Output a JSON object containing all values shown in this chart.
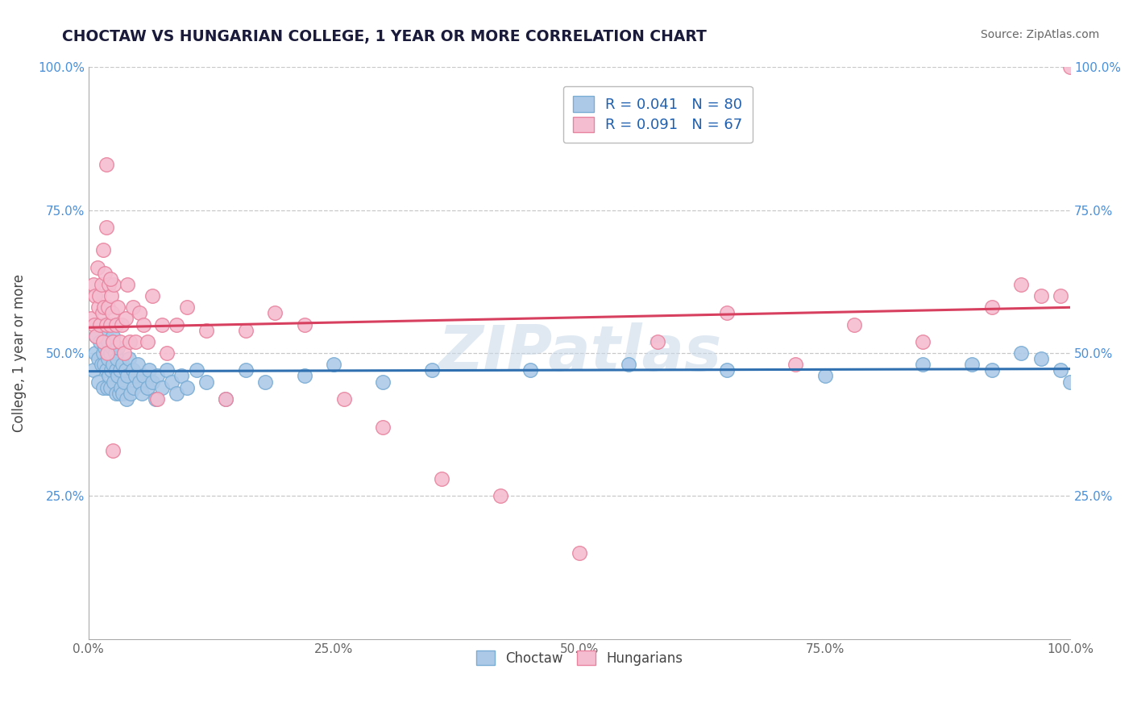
{
  "title": "CHOCTAW VS HUNGARIAN COLLEGE, 1 YEAR OR MORE CORRELATION CHART",
  "source": "Source: ZipAtlas.com",
  "ylabel": "College, 1 year or more",
  "xlim": [
    0,
    1.0
  ],
  "ylim": [
    0,
    1.0
  ],
  "xticks": [
    0.0,
    0.25,
    0.5,
    0.75,
    1.0
  ],
  "yticks": [
    0.0,
    0.25,
    0.5,
    0.75,
    1.0
  ],
  "xtick_labels": [
    "0.0%",
    "25.0%",
    "50.0%",
    "75.0%",
    "100.0%"
  ],
  "ytick_labels_left": [
    "",
    "25.0%",
    "50.0%",
    "75.0%",
    "100.0%"
  ],
  "ytick_labels_right": [
    "",
    "25.0%",
    "50.0%",
    "75.0%",
    "100.0%"
  ],
  "choctaw_color": "#adc9e8",
  "hungarian_color": "#f5bdd0",
  "choctaw_edge": "#7aadd4",
  "hungarian_edge": "#e8849f",
  "trend_blue": "#3070b0",
  "trend_pink": "#d84060",
  "R_choctaw": 0.041,
  "N_choctaw": 80,
  "R_hungarian": 0.091,
  "N_hungarian": 67,
  "watermark": "ZIPatlas",
  "background_color": "#ffffff",
  "grid_color": "#c8c8c8",
  "title_color": "#1a1a3a",
  "source_color": "#666666",
  "ylabel_color": "#444444",
  "tick_color_x": "#666666",
  "tick_color_y": "#4a90d9",
  "legend_text_color": "#2060b0",
  "legend_n_color": "#e04060",
  "choctaw_x": [
    0.005,
    0.007,
    0.008,
    0.01,
    0.01,
    0.012,
    0.013,
    0.015,
    0.015,
    0.015,
    0.016,
    0.017,
    0.018,
    0.018,
    0.019,
    0.02,
    0.02,
    0.021,
    0.022,
    0.022,
    0.023,
    0.024,
    0.025,
    0.025,
    0.026,
    0.027,
    0.028,
    0.028,
    0.029,
    0.03,
    0.03,
    0.031,
    0.032,
    0.033,
    0.035,
    0.035,
    0.036,
    0.038,
    0.039,
    0.04,
    0.041,
    0.043,
    0.045,
    0.046,
    0.048,
    0.05,
    0.052,
    0.054,
    0.056,
    0.06,
    0.062,
    0.065,
    0.068,
    0.07,
    0.075,
    0.08,
    0.085,
    0.09,
    0.095,
    0.1,
    0.11,
    0.12,
    0.14,
    0.16,
    0.18,
    0.22,
    0.25,
    0.3,
    0.35,
    0.45,
    0.55,
    0.65,
    0.75,
    0.85,
    0.9,
    0.92,
    0.95,
    0.97,
    0.99,
    1.0
  ],
  "choctaw_y": [
    0.47,
    0.5,
    0.53,
    0.49,
    0.45,
    0.52,
    0.48,
    0.55,
    0.5,
    0.44,
    0.48,
    0.51,
    0.54,
    0.47,
    0.44,
    0.49,
    0.52,
    0.46,
    0.5,
    0.44,
    0.47,
    0.51,
    0.48,
    0.53,
    0.45,
    0.5,
    0.47,
    0.43,
    0.49,
    0.51,
    0.46,
    0.43,
    0.47,
    0.44,
    0.48,
    0.43,
    0.45,
    0.47,
    0.42,
    0.46,
    0.49,
    0.43,
    0.47,
    0.44,
    0.46,
    0.48,
    0.45,
    0.43,
    0.46,
    0.44,
    0.47,
    0.45,
    0.42,
    0.46,
    0.44,
    0.47,
    0.45,
    0.43,
    0.46,
    0.44,
    0.47,
    0.45,
    0.42,
    0.47,
    0.45,
    0.46,
    0.48,
    0.45,
    0.47,
    0.47,
    0.48,
    0.47,
    0.46,
    0.48,
    0.48,
    0.47,
    0.5,
    0.49,
    0.47,
    0.45
  ],
  "hungarian_x": [
    0.003,
    0.005,
    0.006,
    0.007,
    0.008,
    0.009,
    0.01,
    0.011,
    0.012,
    0.013,
    0.014,
    0.015,
    0.015,
    0.016,
    0.017,
    0.018,
    0.018,
    0.019,
    0.02,
    0.021,
    0.022,
    0.023,
    0.024,
    0.025,
    0.026,
    0.028,
    0.03,
    0.032,
    0.034,
    0.036,
    0.038,
    0.04,
    0.042,
    0.045,
    0.048,
    0.052,
    0.056,
    0.06,
    0.065,
    0.07,
    0.075,
    0.08,
    0.09,
    0.1,
    0.12,
    0.14,
    0.16,
    0.19,
    0.22,
    0.26,
    0.3,
    0.36,
    0.42,
    0.5,
    0.58,
    0.65,
    0.72,
    0.78,
    0.85,
    0.92,
    0.95,
    0.97,
    0.99,
    1.0,
    0.018,
    0.022,
    0.025
  ],
  "hungarian_y": [
    0.56,
    0.62,
    0.55,
    0.6,
    0.53,
    0.65,
    0.58,
    0.6,
    0.55,
    0.62,
    0.57,
    0.68,
    0.52,
    0.58,
    0.64,
    0.55,
    0.72,
    0.5,
    0.58,
    0.62,
    0.55,
    0.6,
    0.57,
    0.52,
    0.62,
    0.55,
    0.58,
    0.52,
    0.55,
    0.5,
    0.56,
    0.62,
    0.52,
    0.58,
    0.52,
    0.57,
    0.55,
    0.52,
    0.6,
    0.42,
    0.55,
    0.5,
    0.55,
    0.58,
    0.54,
    0.42,
    0.54,
    0.57,
    0.55,
    0.42,
    0.37,
    0.28,
    0.25,
    0.15,
    0.52,
    0.57,
    0.48,
    0.55,
    0.52,
    0.58,
    0.62,
    0.6,
    0.6,
    1.0,
    0.83,
    0.63,
    0.33
  ]
}
